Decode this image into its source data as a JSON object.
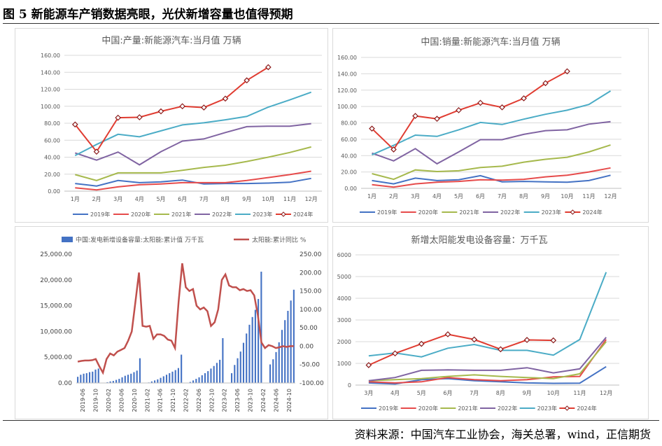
{
  "figure_title": "图 5  新能源车产销数据亮眼，光伏新增容量也值得预期",
  "source": "资料来源：中国汽车工业协会，海关总署，wind，正信期货",
  "chart_data": [
    {
      "type": "line",
      "title": "中国:产量:新能源汽车:当月值 万辆",
      "categories": [
        "1月",
        "2月",
        "3月",
        "4月",
        "5月",
        "6月",
        "7月",
        "8月",
        "9月",
        "10月",
        "11月",
        "12月"
      ],
      "ylim": [
        0,
        160
      ],
      "yticks": [
        "0.00",
        "20.00",
        "40.00",
        "60.00",
        "80.00",
        "100.00",
        "120.00",
        "140.00",
        "160.00"
      ],
      "grid": true,
      "legend_position": "bottom",
      "series": [
        {
          "name": "2019年",
          "color": "#4472c4",
          "values": [
            9,
            6,
            12.5,
            10,
            11,
            13,
            8.5,
            9,
            9,
            9.5,
            10.5,
            15
          ]
        },
        {
          "name": "2020年",
          "color": "#e64b4b",
          "values": [
            4,
            1.5,
            5,
            7.5,
            8.5,
            10,
            10,
            10,
            12.5,
            16,
            19.5,
            23.5
          ]
        },
        {
          "name": "2021年",
          "color": "#a6b94d",
          "values": [
            19.5,
            12.5,
            21.5,
            21.5,
            21.5,
            24.5,
            28,
            30.5,
            35,
            40,
            45.5,
            52
          ]
        },
        {
          "name": "2022年",
          "color": "#8064a2",
          "values": [
            45,
            36.5,
            46,
            31,
            46.5,
            59,
            61.5,
            69,
            76,
            76.5,
            76.5,
            79.5
          ]
        },
        {
          "name": "2023年",
          "color": "#4bacc6",
          "values": [
            42,
            55,
            67,
            64,
            71,
            78,
            80.5,
            84,
            88,
            99,
            107.5,
            116.5
          ]
        },
        {
          "name": "2024年",
          "color": "#e03c31",
          "marker": "diamond",
          "values": [
            78.5,
            46.5,
            86.5,
            87,
            94,
            100,
            98.5,
            109,
            130.5,
            146,
            null,
            null
          ]
        }
      ]
    },
    {
      "type": "line",
      "title": "中国:销量:新能源汽车:当月值 万辆",
      "categories": [
        "1月",
        "2月",
        "3月",
        "4月",
        "5月",
        "6月",
        "7月",
        "8月",
        "9月",
        "10月",
        "11月",
        "12月"
      ],
      "ylim": [
        0,
        160
      ],
      "yticks": [
        "0.00",
        "20.00",
        "40.00",
        "60.00",
        "80.00",
        "100.00",
        "120.00",
        "140.00",
        "160.00"
      ],
      "grid": true,
      "legend_position": "bottom",
      "series": [
        {
          "name": "2019年",
          "color": "#4472c4",
          "values": [
            9.5,
            5.5,
            12.5,
            9.5,
            10.5,
            15.5,
            8,
            8.5,
            8,
            7.5,
            9.5,
            16
          ]
        },
        {
          "name": "2020年",
          "color": "#e64b4b",
          "values": [
            4.5,
            1.5,
            5.5,
            7.5,
            8.5,
            10.5,
            10,
            11,
            14,
            16,
            20,
            25
          ]
        },
        {
          "name": "2021年",
          "color": "#a6b94d",
          "values": [
            18,
            11,
            22.5,
            20.5,
            21.5,
            25.5,
            27,
            32,
            35.5,
            38,
            44.5,
            53
          ]
        },
        {
          "name": "2022年",
          "color": "#8064a2",
          "values": [
            43,
            33.5,
            48.5,
            30,
            44.5,
            59.5,
            59.5,
            66,
            70.5,
            71.5,
            78.5,
            81.5
          ]
        },
        {
          "name": "2023年",
          "color": "#4bacc6",
          "values": [
            41,
            52.5,
            65,
            63.5,
            71.5,
            80.5,
            78,
            84.5,
            90.5,
            95.5,
            102.5,
            119
          ]
        },
        {
          "name": "2024年",
          "color": "#e03c31",
          "marker": "diamond",
          "values": [
            73,
            47.5,
            88.5,
            85,
            95.5,
            104.5,
            99,
            110,
            128.5,
            143,
            null,
            null
          ]
        }
      ]
    },
    {
      "type": "bar",
      "title": "",
      "x_ticks": [
        "2019-06",
        "2019-10",
        "2020-02",
        "2020-06",
        "2020-10",
        "2021-02",
        "2021-06",
        "2021-10",
        "2022-02",
        "2022-06",
        "2022-10",
        "2023-02",
        "2023-06",
        "2023-10",
        "2024-02",
        "2024-06",
        "2024-10"
      ],
      "ylim_left": [
        0,
        25000
      ],
      "yticks_left": [
        "0.00",
        "5,000.00",
        "10,000.00",
        "15,000.00",
        "20,000.00",
        "25,000.00"
      ],
      "ylim_right": [
        -100,
        250
      ],
      "yticks_right": [
        "-100.00",
        "-50.00",
        "0.00",
        "50.00",
        "100.00",
        "150.00",
        "200.00",
        "250.00"
      ],
      "legend_position": "top",
      "series": [
        {
          "name": "中国:发电新增设备容量:太阳能:累计值 万千瓦",
          "type": "bar",
          "axis": "left",
          "color": "#4472c4",
          "values": [
            1200,
            1600,
            1800,
            1900,
            2100,
            2200,
            2600,
            2800,
            null,
            null,
            150,
            300,
            400,
            600,
            800,
            1100,
            1400,
            1600,
            1800,
            2100,
            2400,
            4800,
            null,
            null,
            100,
            300,
            500,
            700,
            1000,
            1300,
            1600,
            1900,
            2200,
            2500,
            2900,
            5500,
            null,
            null,
            200,
            500,
            800,
            1100,
            1500,
            1900,
            2300,
            2800,
            3300,
            3900,
            4500,
            8700,
            null,
            null,
            1900,
            3500,
            4800,
            6100,
            7800,
            9600,
            11300,
            12800,
            14200,
            16300,
            21600,
            null,
            null,
            3600,
            4600,
            6000,
            7900,
            10300,
            12200,
            14000,
            16000,
            18100
          ]
        },
        {
          "name": "太阳能:累计同比 %",
          "type": "line",
          "axis": "right",
          "color": "#c0504d",
          "values": [
            -42,
            -40,
            -39,
            -39,
            -38,
            -35,
            -55,
            -72,
            -35,
            -20,
            -25,
            -15,
            -10,
            -5,
            15,
            40,
            120,
            200,
            55,
            53,
            55,
            20,
            32,
            32,
            28,
            18,
            15,
            -5,
            120,
            225,
            160,
            150,
            155,
            110,
            100,
            105,
            95,
            55,
            65,
            100,
            180,
            195,
            165,
            160,
            160,
            152,
            155,
            150,
            152,
            138,
            85,
            10,
            -5,
            3,
            0,
            -5,
            -3,
            0,
            -2,
            0,
            0
          ]
        }
      ]
    },
    {
      "type": "line",
      "title": "新增太阳能发电设备容量：万千瓦",
      "categories": [
        "3月",
        "4月",
        "5月",
        "6月",
        "7月",
        "8月",
        "9月",
        "10月",
        "11月",
        "12月"
      ],
      "ylim": [
        0,
        6000
      ],
      "yticks": [
        "0",
        "1000",
        "2000",
        "3000",
        "4000",
        "5000",
        "6000"
      ],
      "grid": true,
      "legend_position": "bottom",
      "series": [
        {
          "name": "2019年",
          "color": "#4472c4",
          "values": [
            100,
            50,
            250,
            300,
            200,
            150,
            100,
            80,
            90,
            850
          ]
        },
        {
          "name": "2020年",
          "color": "#e64b4b",
          "values": [
            150,
            100,
            150,
            350,
            250,
            200,
            250,
            380,
            400,
            2100
          ]
        },
        {
          "name": "2021年",
          "color": "#a6b94d",
          "values": [
            200,
            250,
            300,
            400,
            470,
            400,
            350,
            300,
            520,
            2000
          ]
        },
        {
          "name": "2022年",
          "color": "#8064a2",
          "values": [
            200,
            350,
            680,
            700,
            680,
            680,
            800,
            560,
            750,
            2200
          ]
        },
        {
          "name": "2023年",
          "color": "#4bacc6",
          "values": [
            1350,
            1480,
            1300,
            1700,
            1870,
            1600,
            1600,
            1380,
            2100,
            5200
          ]
        },
        {
          "name": "2024年",
          "color": "#e03c31",
          "marker": "diamond",
          "values": [
            920,
            1460,
            1900,
            2340,
            2100,
            1650,
            2080,
            2060,
            null,
            null
          ]
        }
      ]
    }
  ]
}
